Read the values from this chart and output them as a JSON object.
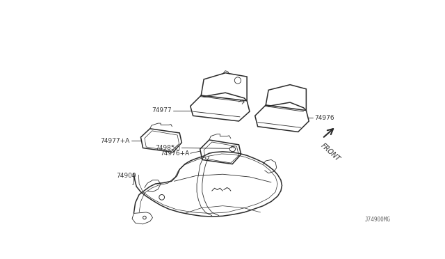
{
  "bg_color": "#ffffff",
  "line_color": "#2a2a2a",
  "label_color": "#333333",
  "fig_width": 6.4,
  "fig_height": 3.72,
  "dpi": 100,
  "label_fs": 6.5,
  "watermark_fs": 6.0,
  "front_text": "FRONT",
  "watermark": "J74900MG"
}
